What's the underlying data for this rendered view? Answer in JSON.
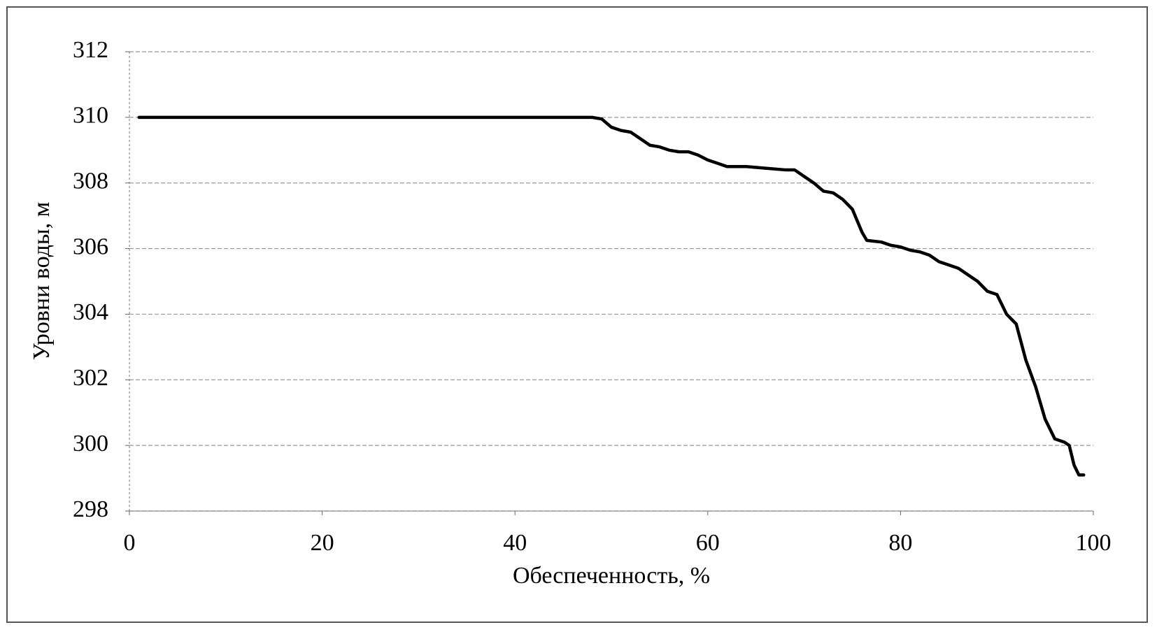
{
  "chart_data": {
    "type": "line",
    "x_label": "Обеспеченность, %",
    "y_label": "Уровни воды, м",
    "xlim": [
      0,
      100
    ],
    "xticks": [
      0,
      20,
      40,
      60,
      80,
      100
    ],
    "ylim": [
      298,
      312
    ],
    "yticks": [
      298,
      300,
      302,
      304,
      306,
      308,
      310,
      312
    ],
    "grid": true,
    "series": [
      {
        "color": "#000000",
        "x": [
          1,
          48,
          49,
          50,
          51,
          52,
          53,
          54,
          55,
          56,
          57,
          58,
          59,
          60,
          61,
          62,
          64,
          66,
          68,
          69,
          70,
          71,
          72,
          73,
          74,
          75,
          76,
          76.5,
          78,
          79,
          80,
          81,
          82,
          83,
          84,
          85,
          86,
          87,
          88,
          89,
          90,
          91,
          92,
          93,
          94,
          95,
          96,
          97,
          97.5,
          98,
          98.5,
          99
        ],
        "values": [
          310,
          310,
          309.95,
          309.7,
          309.6,
          309.55,
          309.35,
          309.15,
          309.1,
          309.0,
          308.95,
          308.95,
          308.85,
          308.7,
          308.6,
          308.5,
          308.5,
          308.45,
          308.4,
          308.4,
          308.2,
          308.0,
          307.75,
          307.7,
          307.5,
          307.2,
          306.5,
          306.25,
          306.2,
          306.1,
          306.05,
          305.95,
          305.9,
          305.8,
          305.6,
          305.5,
          305.4,
          305.2,
          305.0,
          304.7,
          304.6,
          304.0,
          303.7,
          302.6,
          301.8,
          300.8,
          300.2,
          300.1,
          300.0,
          299.4,
          299.1,
          299.1
        ]
      }
    ]
  }
}
